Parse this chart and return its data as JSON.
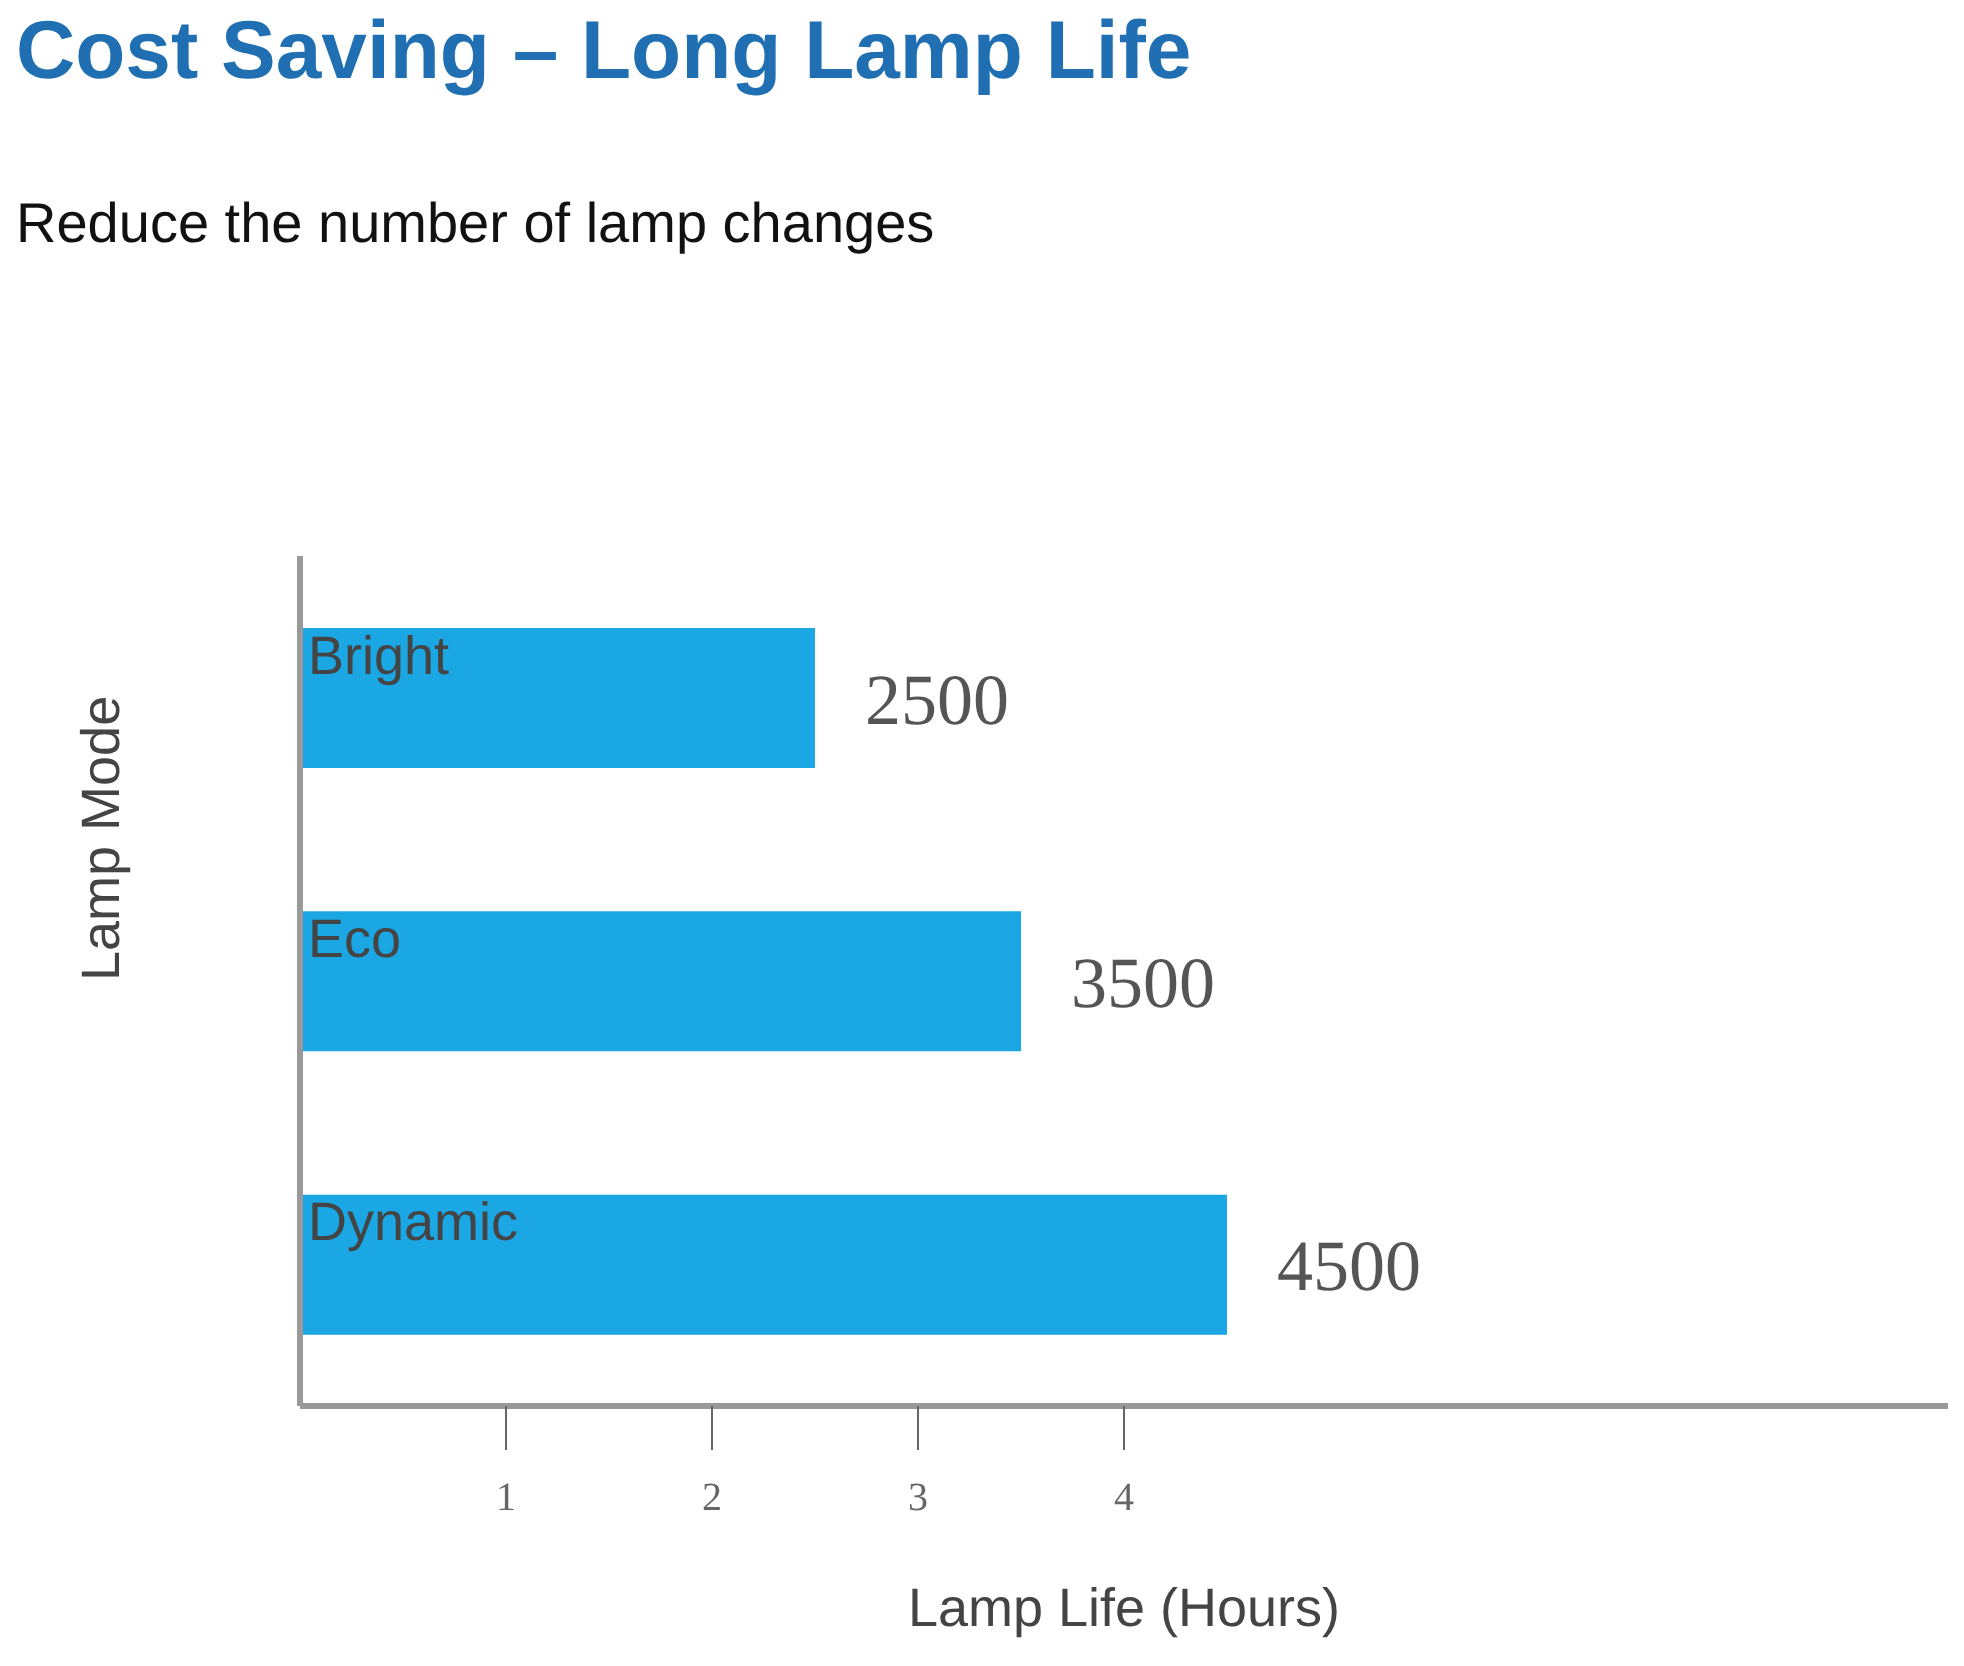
{
  "chart_data": {
    "type": "bar",
    "orientation": "horizontal",
    "title": "Cost Saving – Long Lamp Life",
    "subtitle": "Reduce the number of lamp changes",
    "xlabel": "Lamp Life (Hours)",
    "ylabel": "Lamp Mode",
    "categories": [
      "Bright",
      "Eco",
      "Dynamic"
    ],
    "values": [
      2500,
      3500,
      4500
    ],
    "color": "#1ba6e4",
    "data_labels": true,
    "xlim": [
      0,
      8000
    ],
    "annotations": [
      "1",
      "2",
      "3",
      "4"
    ],
    "grid": false,
    "legend": false
  }
}
